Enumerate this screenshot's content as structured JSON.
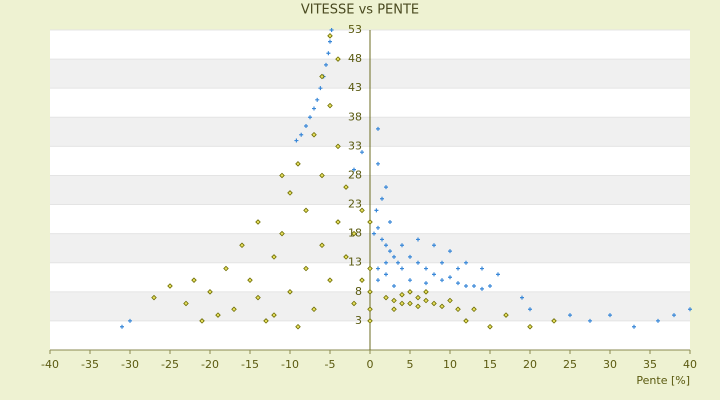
{
  "chart_data": {
    "type": "scatter",
    "title": "VITESSE vs PENTE",
    "x_label": "Pente [%]",
    "xlim": [
      -40,
      40
    ],
    "xticks": [
      -40,
      -35,
      -30,
      -25,
      -20,
      -15,
      -10,
      -5,
      0,
      5,
      10,
      15,
      20,
      25,
      30,
      35,
      40
    ],
    "ylim": [
      -2,
      53
    ],
    "yticks": [
      3,
      8,
      13,
      18,
      23,
      28,
      33,
      38,
      43,
      48,
      53
    ],
    "bands": true,
    "series": [
      {
        "color": "#3a88d8",
        "marker": "plus",
        "x": [
          -4.8,
          -5,
          -5.2,
          -5.5,
          -5.8,
          -6.2,
          -6.6,
          -7,
          -7.5,
          -8,
          -8.6,
          -9.2,
          0.5,
          1,
          1.5,
          2,
          2.5,
          3,
          1,
          2,
          3.5,
          4,
          5,
          6,
          7,
          8,
          9,
          10,
          11,
          12,
          13,
          14,
          4,
          6,
          8,
          10,
          12,
          14,
          5,
          7,
          3,
          1,
          2,
          9,
          11,
          15,
          16,
          2.5,
          0.8,
          1.5,
          2,
          19,
          20,
          25,
          27.5,
          30,
          33,
          38,
          40,
          36,
          -30,
          -31,
          -2,
          -1,
          1,
          1
        ],
        "y": [
          53,
          51,
          49,
          47,
          45,
          43,
          41,
          39.5,
          38,
          36.5,
          35,
          34,
          18,
          19,
          17,
          16,
          15,
          14,
          12,
          11,
          13,
          12,
          14,
          13,
          12,
          11,
          10,
          10.5,
          9.5,
          9,
          9,
          8.5,
          16,
          17,
          16,
          15,
          13,
          12,
          10,
          9.5,
          9,
          10,
          13,
          13,
          12,
          9,
          11,
          20,
          22,
          24,
          26,
          7,
          5,
          4,
          3,
          4,
          2,
          4,
          5,
          3,
          3,
          2,
          29,
          32,
          30,
          36
        ]
      },
      {
        "color": "#6b6b00",
        "fill": "#e8e060",
        "marker": "diamond",
        "x": [
          2,
          3,
          4,
          5,
          6,
          7,
          8,
          9,
          10,
          11,
          3,
          5,
          7,
          4,
          6,
          12,
          15,
          17,
          20,
          23,
          13,
          -27,
          -25,
          -23,
          -21,
          -20,
          -18,
          -17,
          -16,
          -15,
          -14,
          -13,
          -12,
          -11,
          -10,
          -10,
          -9,
          -8,
          -8,
          -7,
          -7,
          -6,
          -6,
          -5,
          -5,
          -4,
          -4,
          -3,
          -3,
          -2,
          -2,
          -1,
          -1,
          -12,
          -9,
          -19,
          -22,
          -14,
          -11,
          -6,
          -4,
          -5,
          0,
          0,
          0,
          0,
          0
        ],
        "y": [
          7,
          6.5,
          7.5,
          6,
          7,
          6.5,
          6,
          5.5,
          6.5,
          5,
          5,
          8,
          8,
          6,
          5.5,
          3,
          2,
          4,
          2,
          3,
          5,
          7,
          9,
          6,
          3,
          8,
          12,
          5,
          16,
          10,
          20,
          3,
          14,
          18,
          8,
          25,
          30,
          12,
          22,
          35,
          5,
          16,
          28,
          10,
          40,
          20,
          33,
          14,
          26,
          6,
          18,
          10,
          22,
          4,
          2,
          4,
          10,
          7,
          28,
          45,
          48,
          52,
          3,
          5,
          8,
          12,
          20
        ]
      }
    ]
  }
}
